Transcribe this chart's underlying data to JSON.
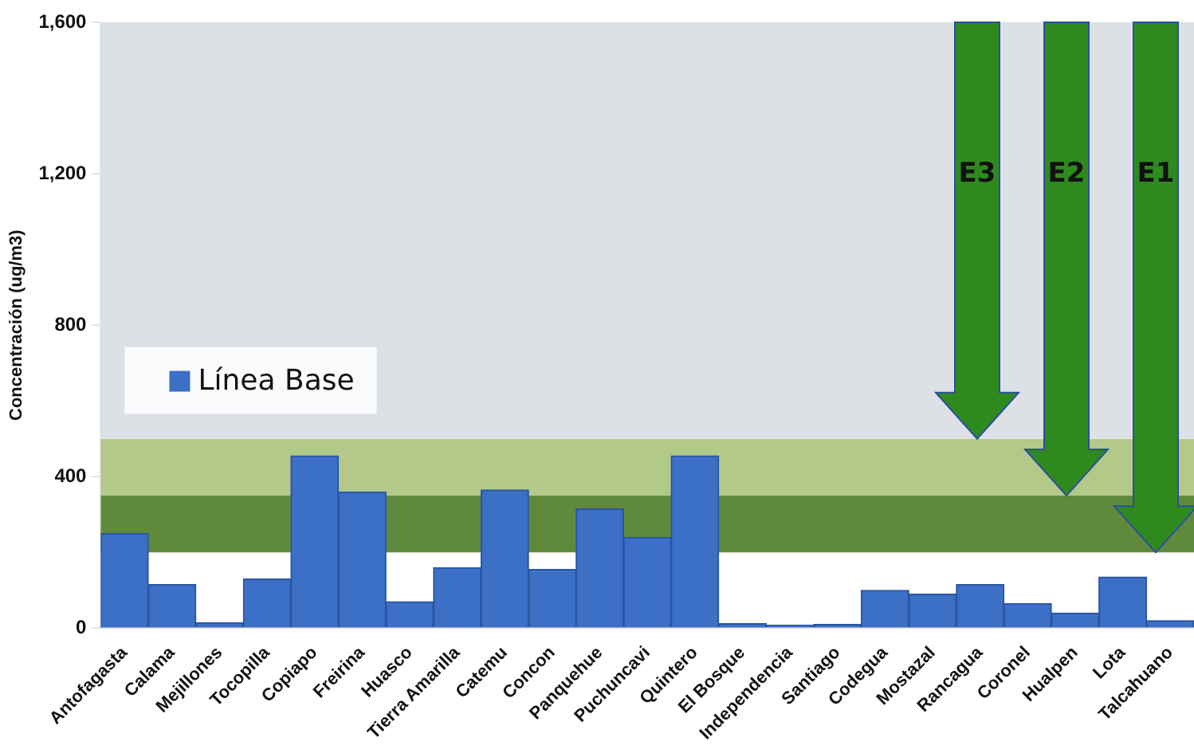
{
  "chart_data": {
    "type": "bar",
    "ylabel": "Concentración (ug/m3)",
    "categories": [
      "Antofagasta",
      "Calama",
      "Mejillones",
      "Tocopilla",
      "Copiapo",
      "Freirina",
      "Huasco",
      "Tierra Amarilla",
      "Catemu",
      "Concon",
      "Panquehue",
      "Puchuncavi",
      "Quintero",
      "El Bosque",
      "Independencia",
      "Santiago",
      "Codegua",
      "Mostazal",
      "Rancagua",
      "Coronel",
      "Hualpen",
      "Lota",
      "Talcahuano"
    ],
    "series": [
      {
        "name": "Línea Base",
        "color": "#3b70c6",
        "values": [
          250,
          115,
          15,
          130,
          455,
          360,
          70,
          160,
          365,
          155,
          315,
          240,
          455,
          12,
          8,
          10,
          100,
          90,
          115,
          65,
          40,
          135,
          20
        ]
      }
    ],
    "ylim": [
      0,
      1600
    ],
    "yticks": [
      0,
      {
        "value": 400,
        "label": "400"
      },
      {
        "value": 800,
        "label": "800"
      },
      {
        "value": 1200,
        "label": "1,200"
      },
      {
        "value": 1600,
        "label": "1,600"
      }
    ],
    "bands": [
      {
        "axis": "y",
        "from": 200,
        "to": 350,
        "color": "#5f8a3c"
      },
      {
        "axis": "y",
        "from": 350,
        "to": 500,
        "color": "#b3c98a"
      },
      {
        "axis": "y",
        "from": 500,
        "to": 1600,
        "color": "#dde1e6"
      }
    ],
    "annotations": [
      "E3",
      "E2",
      "E1"
    ],
    "legend": "left",
    "grid": false
  }
}
